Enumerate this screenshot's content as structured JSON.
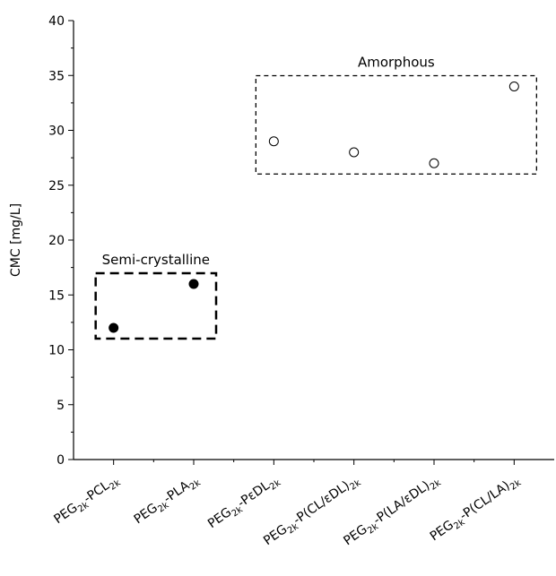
{
  "chart_data": {
    "type": "scatter",
    "y_label": "CMC [mg/L]",
    "categories": [
      "PEG2k-PCL2k",
      "PEG2k-PLA2k",
      "PEG2k-PεDL2k",
      "PEG2k-P(CL/εDL)2k",
      "PEG2k-P(LA/εDL)2k",
      "PEG2k-P(CL/LA)2k"
    ],
    "series": [
      {
        "name": "Semi-crystalline",
        "color": "#000000",
        "filled": true,
        "values": [
          12,
          16,
          null,
          null,
          null,
          null
        ]
      },
      {
        "name": "Amorphous",
        "color": "#000000",
        "filled": false,
        "values": [
          null,
          null,
          29,
          28,
          27,
          34
        ]
      }
    ],
    "ylim": [
      0,
      40
    ],
    "yticks": [
      0,
      5,
      10,
      15,
      20,
      25,
      30,
      35,
      40
    ]
  }
}
